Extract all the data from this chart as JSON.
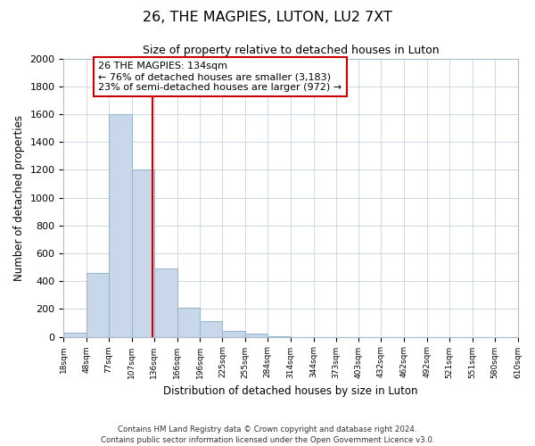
{
  "title": "26, THE MAGPIES, LUTON, LU2 7XT",
  "subtitle": "Size of property relative to detached houses in Luton",
  "xlabel": "Distribution of detached houses by size in Luton",
  "ylabel": "Number of detached properties",
  "bin_edges": [
    18,
    48,
    77,
    107,
    136,
    166,
    196,
    225,
    255,
    284,
    314,
    344,
    373,
    403,
    432,
    462,
    492,
    521,
    551,
    580,
    610
  ],
  "bar_heights": [
    30,
    460,
    1600,
    1200,
    490,
    210,
    115,
    45,
    20,
    5,
    0,
    0,
    0,
    0,
    0,
    0,
    0,
    0,
    0,
    0
  ],
  "bar_color": "#c8d8ea",
  "bar_edge_color": "#9ab8cc",
  "property_size": 134,
  "vline_color": "#cc0000",
  "annotation_line1": "26 THE MAGPIES: 134sqm",
  "annotation_line2": "← 76% of detached houses are smaller (3,183)",
  "annotation_line3": "23% of semi-detached houses are larger (972) →",
  "annotation_box_color": "#ffffff",
  "annotation_border_color": "#cc0000",
  "ylim": [
    0,
    2000
  ],
  "yticks": [
    0,
    200,
    400,
    600,
    800,
    1000,
    1200,
    1400,
    1600,
    1800,
    2000
  ],
  "footer_text": "Contains HM Land Registry data © Crown copyright and database right 2024.\nContains public sector information licensed under the Open Government Licence v3.0.",
  "background_color": "#ffffff",
  "grid_color": "#ccd8e4"
}
